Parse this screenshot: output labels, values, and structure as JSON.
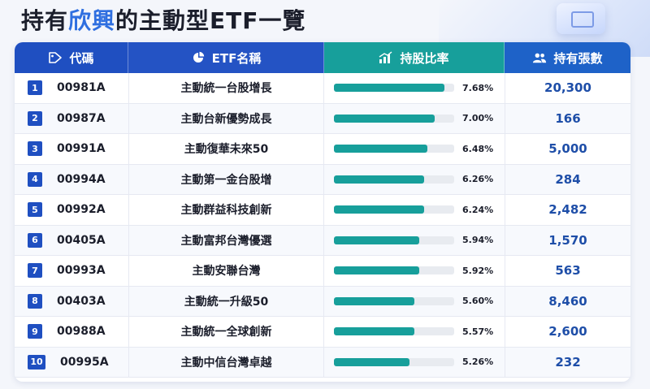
{
  "title": {
    "prefix": "持有",
    "accent": "欣興",
    "suffix": "的主動型ETF一覽"
  },
  "colors": {
    "accent": "#2f6fe0",
    "header_blue": "#1f4fc1",
    "header_teal": "#179f9b",
    "bar": "#179f9b",
    "count_text": "#1e4ea8"
  },
  "header": {
    "code_label": "代碼",
    "code_icon": "tag-icon",
    "name_label": "ETF名稱",
    "name_icon": "pie-chart-icon",
    "ratio_label": "持股比率",
    "ratio_icon": "bar-growth-icon",
    "count_label": "持有張數",
    "count_icon": "people-icon"
  },
  "rows": [
    {
      "rank": "1",
      "code": "00981A",
      "name": "主動統一台股增長",
      "ratio": "7.68%",
      "ratio_value": 7.68,
      "count": "20,300"
    },
    {
      "rank": "2",
      "code": "00987A",
      "name": "主動台新優勢成長",
      "ratio": "7.00%",
      "ratio_value": 7.0,
      "count": "166"
    },
    {
      "rank": "3",
      "code": "00991A",
      "name": "主動復華未來50",
      "ratio": "6.48%",
      "ratio_value": 6.48,
      "count": "5,000"
    },
    {
      "rank": "4",
      "code": "00994A",
      "name": "主動第一金台股增",
      "ratio": "6.26%",
      "ratio_value": 6.26,
      "count": "284"
    },
    {
      "rank": "5",
      "code": "00992A",
      "name": "主動群益科技創新",
      "ratio": "6.24%",
      "ratio_value": 6.24,
      "count": "2,482"
    },
    {
      "rank": "6",
      "code": "00405A",
      "name": "主動富邦台灣優選",
      "ratio": "5.94%",
      "ratio_value": 5.94,
      "count": "1,570"
    },
    {
      "rank": "7",
      "code": "00993A",
      "name": "主動安聯台灣",
      "ratio": "5.92%",
      "ratio_value": 5.92,
      "count": "563"
    },
    {
      "rank": "8",
      "code": "00403A",
      "name": "主動統一升級50",
      "ratio": "5.60%",
      "ratio_value": 5.6,
      "count": "8,460"
    },
    {
      "rank": "9",
      "code": "00988A",
      "name": "主動統一全球創新",
      "ratio": "5.57%",
      "ratio_value": 5.57,
      "count": "2,600"
    },
    {
      "rank": "10",
      "code": "00995A",
      "name": "主動中信台灣卓越",
      "ratio": "5.26%",
      "ratio_value": 5.26,
      "count": "232"
    }
  ]
}
